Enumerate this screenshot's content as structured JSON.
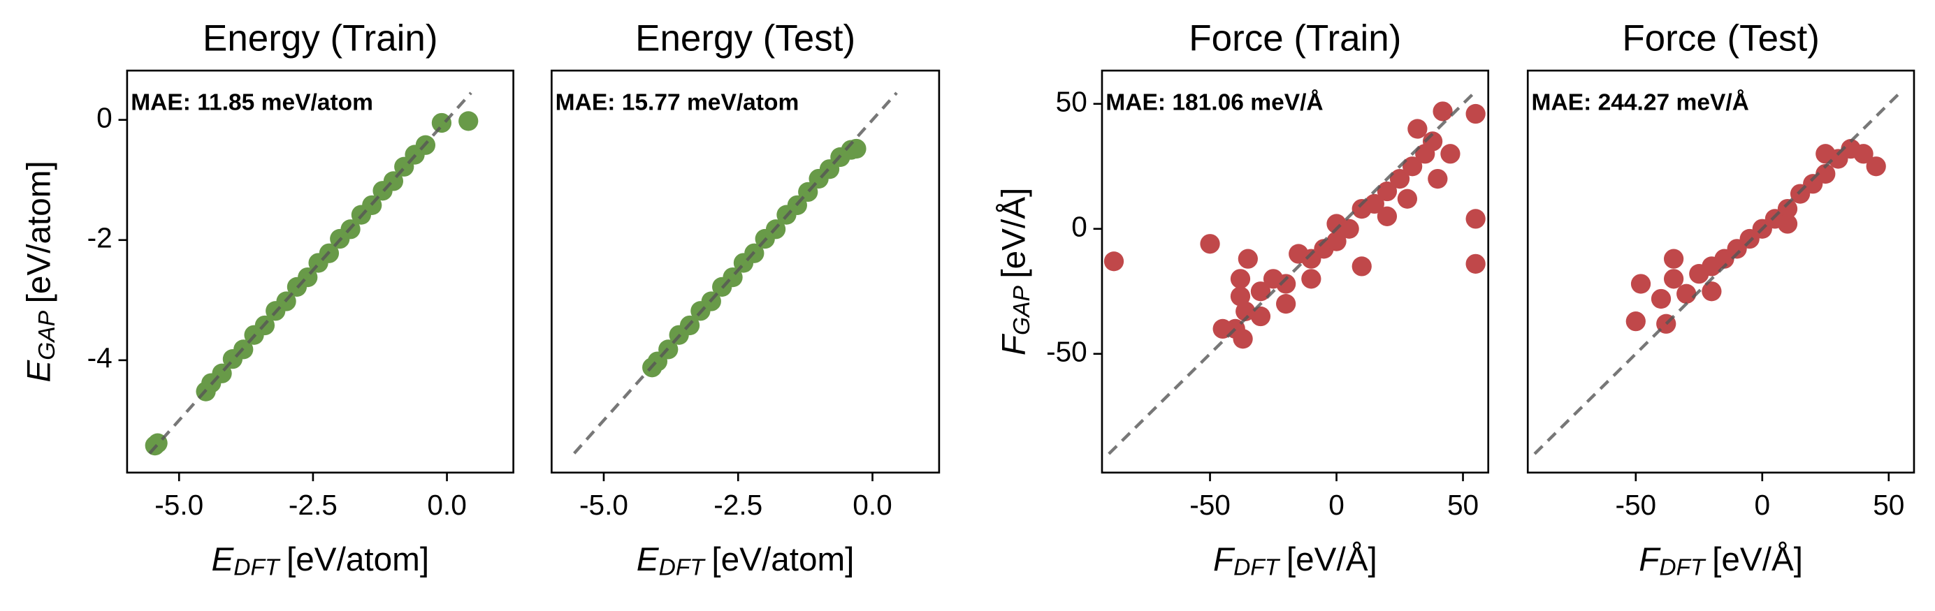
{
  "chart_data": [
    {
      "type": "scatter",
      "title": "Energy (Train)",
      "color": "#689a48",
      "annotation": "MAE: 11.85 meV/atom",
      "xlabel": {
        "symbol": "E",
        "subscript": "DFT",
        "unit": "[eV/atom]"
      },
      "ylabel": {
        "symbol": "E",
        "subscript": "GAP",
        "unit": "[eV/atom]"
      },
      "xlim": [
        -5.97,
        1.24
      ],
      "ylim": [
        -5.87,
        0.82
      ],
      "xticks": [
        {
          "value": -5,
          "label": "-5.0"
        },
        {
          "value": -2.5,
          "label": "-2.5"
        },
        {
          "value": 0,
          "label": "0.0"
        }
      ],
      "yticks": [
        0,
        -2,
        -4
      ],
      "reference_line": [
        -5.55,
        0.45
      ],
      "x": [
        -5.45,
        -5.4,
        -4.5,
        -4.4,
        -4.2,
        -4.0,
        -3.8,
        -3.6,
        -3.4,
        -3.2,
        -3.0,
        -2.8,
        -2.6,
        -2.4,
        -2.2,
        -2.0,
        -1.8,
        -1.6,
        -1.4,
        -1.2,
        -1.0,
        -0.8,
        -0.6,
        -0.4,
        -0.1,
        0.4
      ],
      "values": [
        -5.42,
        -5.38,
        -4.52,
        -4.38,
        -4.22,
        -3.98,
        -3.82,
        -3.58,
        -3.42,
        -3.18,
        -3.02,
        -2.78,
        -2.62,
        -2.38,
        -2.22,
        -1.98,
        -1.82,
        -1.58,
        -1.42,
        -1.18,
        -1.02,
        -0.78,
        -0.58,
        -0.42,
        -0.05,
        -0.02
      ]
    },
    {
      "type": "scatter",
      "title": "Energy (Test)",
      "color": "#689a48",
      "annotation": "MAE: 15.77 meV/atom",
      "xlabel": {
        "symbol": "E",
        "subscript": "DFT",
        "unit": "[eV/atom]"
      },
      "xlim": [
        -5.97,
        1.24
      ],
      "ylim": [
        -5.87,
        0.82
      ],
      "xticks": [
        {
          "value": -5,
          "label": "-5.0"
        },
        {
          "value": -2.5,
          "label": "-2.5"
        },
        {
          "value": 0,
          "label": "0.0"
        }
      ],
      "reference_line": [
        -5.55,
        0.45
      ],
      "x": [
        -4.1,
        -4.0,
        -3.8,
        -3.6,
        -3.4,
        -3.2,
        -3.0,
        -2.8,
        -2.6,
        -2.4,
        -2.2,
        -2.0,
        -1.8,
        -1.6,
        -1.4,
        -1.2,
        -1.0,
        -0.8,
        -0.6,
        -0.4,
        -0.3
      ],
      "values": [
        -4.12,
        -4.02,
        -3.82,
        -3.58,
        -3.42,
        -3.18,
        -3.02,
        -2.78,
        -2.62,
        -2.38,
        -2.22,
        -1.98,
        -1.82,
        -1.58,
        -1.42,
        -1.2,
        -0.98,
        -0.82,
        -0.62,
        -0.5,
        -0.48
      ]
    },
    {
      "type": "scatter",
      "title": "Force (Train)",
      "color": "#c0484a",
      "annotation": "MAE: 181.06 meV/Å",
      "xlabel": {
        "symbol": "F",
        "subscript": "DFT",
        "unit": "[eV/Å]"
      },
      "ylabel": {
        "symbol": "F",
        "subscript": "GAP",
        "unit": "[eV/Å]"
      },
      "xlim": [
        -92.7,
        60
      ],
      "ylim": [
        -97.5,
        63.3
      ],
      "xticks": [
        -50,
        0,
        50
      ],
      "yticks": [
        50,
        0,
        -50
      ],
      "reference_line": [
        -90,
        55
      ],
      "x": [
        -88,
        -50,
        -38,
        -38,
        -36,
        -37,
        -40,
        -35,
        -30,
        -25,
        -20,
        -15,
        -10,
        -5,
        0,
        5,
        10,
        10,
        15,
        20,
        25,
        30,
        32,
        35,
        40,
        42,
        45,
        55,
        55,
        55,
        -45,
        -20,
        0,
        28,
        38,
        -30,
        -10,
        20
      ],
      "values": [
        -13,
        -6,
        -20,
        -27,
        -33,
        -44,
        -40,
        -12,
        -25,
        -20,
        -22,
        -10,
        -12,
        -8,
        -5,
        0,
        -15,
        8,
        10,
        15,
        20,
        25,
        40,
        30,
        20,
        47,
        30,
        46,
        4,
        -14,
        -40,
        -30,
        2,
        12,
        35,
        -35,
        -20,
        5
      ]
    },
    {
      "type": "scatter",
      "title": "Force (Test)",
      "color": "#c0484a",
      "annotation": "MAE: 244.27 meV/Å",
      "xlabel": {
        "symbol": "F",
        "subscript": "DFT",
        "unit": "[eV/Å]"
      },
      "xlim": [
        -92.7,
        60
      ],
      "ylim": [
        -97.5,
        63.3
      ],
      "xticks": [
        -50,
        0,
        50
      ],
      "reference_line": [
        -90,
        55
      ],
      "x": [
        -50,
        -48,
        -40,
        -35,
        -35,
        -30,
        -25,
        -20,
        -15,
        -10,
        -5,
        0,
        5,
        10,
        15,
        20,
        25,
        30,
        35,
        40,
        45,
        -38,
        -20,
        10,
        25
      ],
      "values": [
        -37,
        -22,
        -28,
        -20,
        -12,
        -26,
        -18,
        -15,
        -12,
        -8,
        -4,
        0,
        4,
        8,
        14,
        18,
        22,
        28,
        32,
        30,
        25,
        -38,
        -25,
        2,
        30
      ]
    }
  ]
}
